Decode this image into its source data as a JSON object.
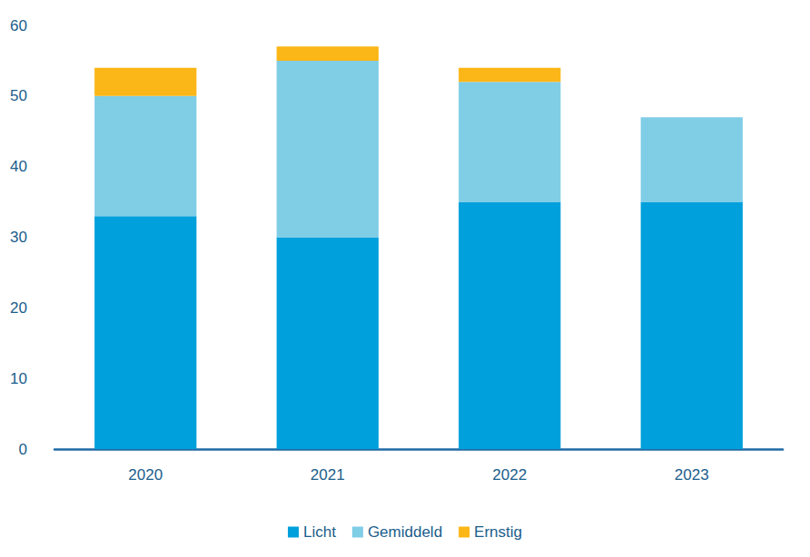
{
  "chart_data": {
    "type": "bar",
    "stacked": true,
    "grid": false,
    "legend": "bottom",
    "categories": [
      "2020",
      "2021",
      "2022",
      "2023"
    ],
    "series": [
      {
        "name": "Licht",
        "color": "#00a0dc",
        "values": [
          33,
          30,
          35,
          35
        ]
      },
      {
        "name": "Gemiddeld",
        "color": "#80cde6",
        "values": [
          17,
          25,
          17,
          12
        ]
      },
      {
        "name": "Ernstig",
        "color": "#fbb617",
        "values": [
          4,
          2,
          2,
          0
        ]
      }
    ],
    "ylim": [
      0,
      60
    ],
    "yticks": [
      0,
      10,
      20,
      30,
      40,
      50,
      60
    ]
  }
}
